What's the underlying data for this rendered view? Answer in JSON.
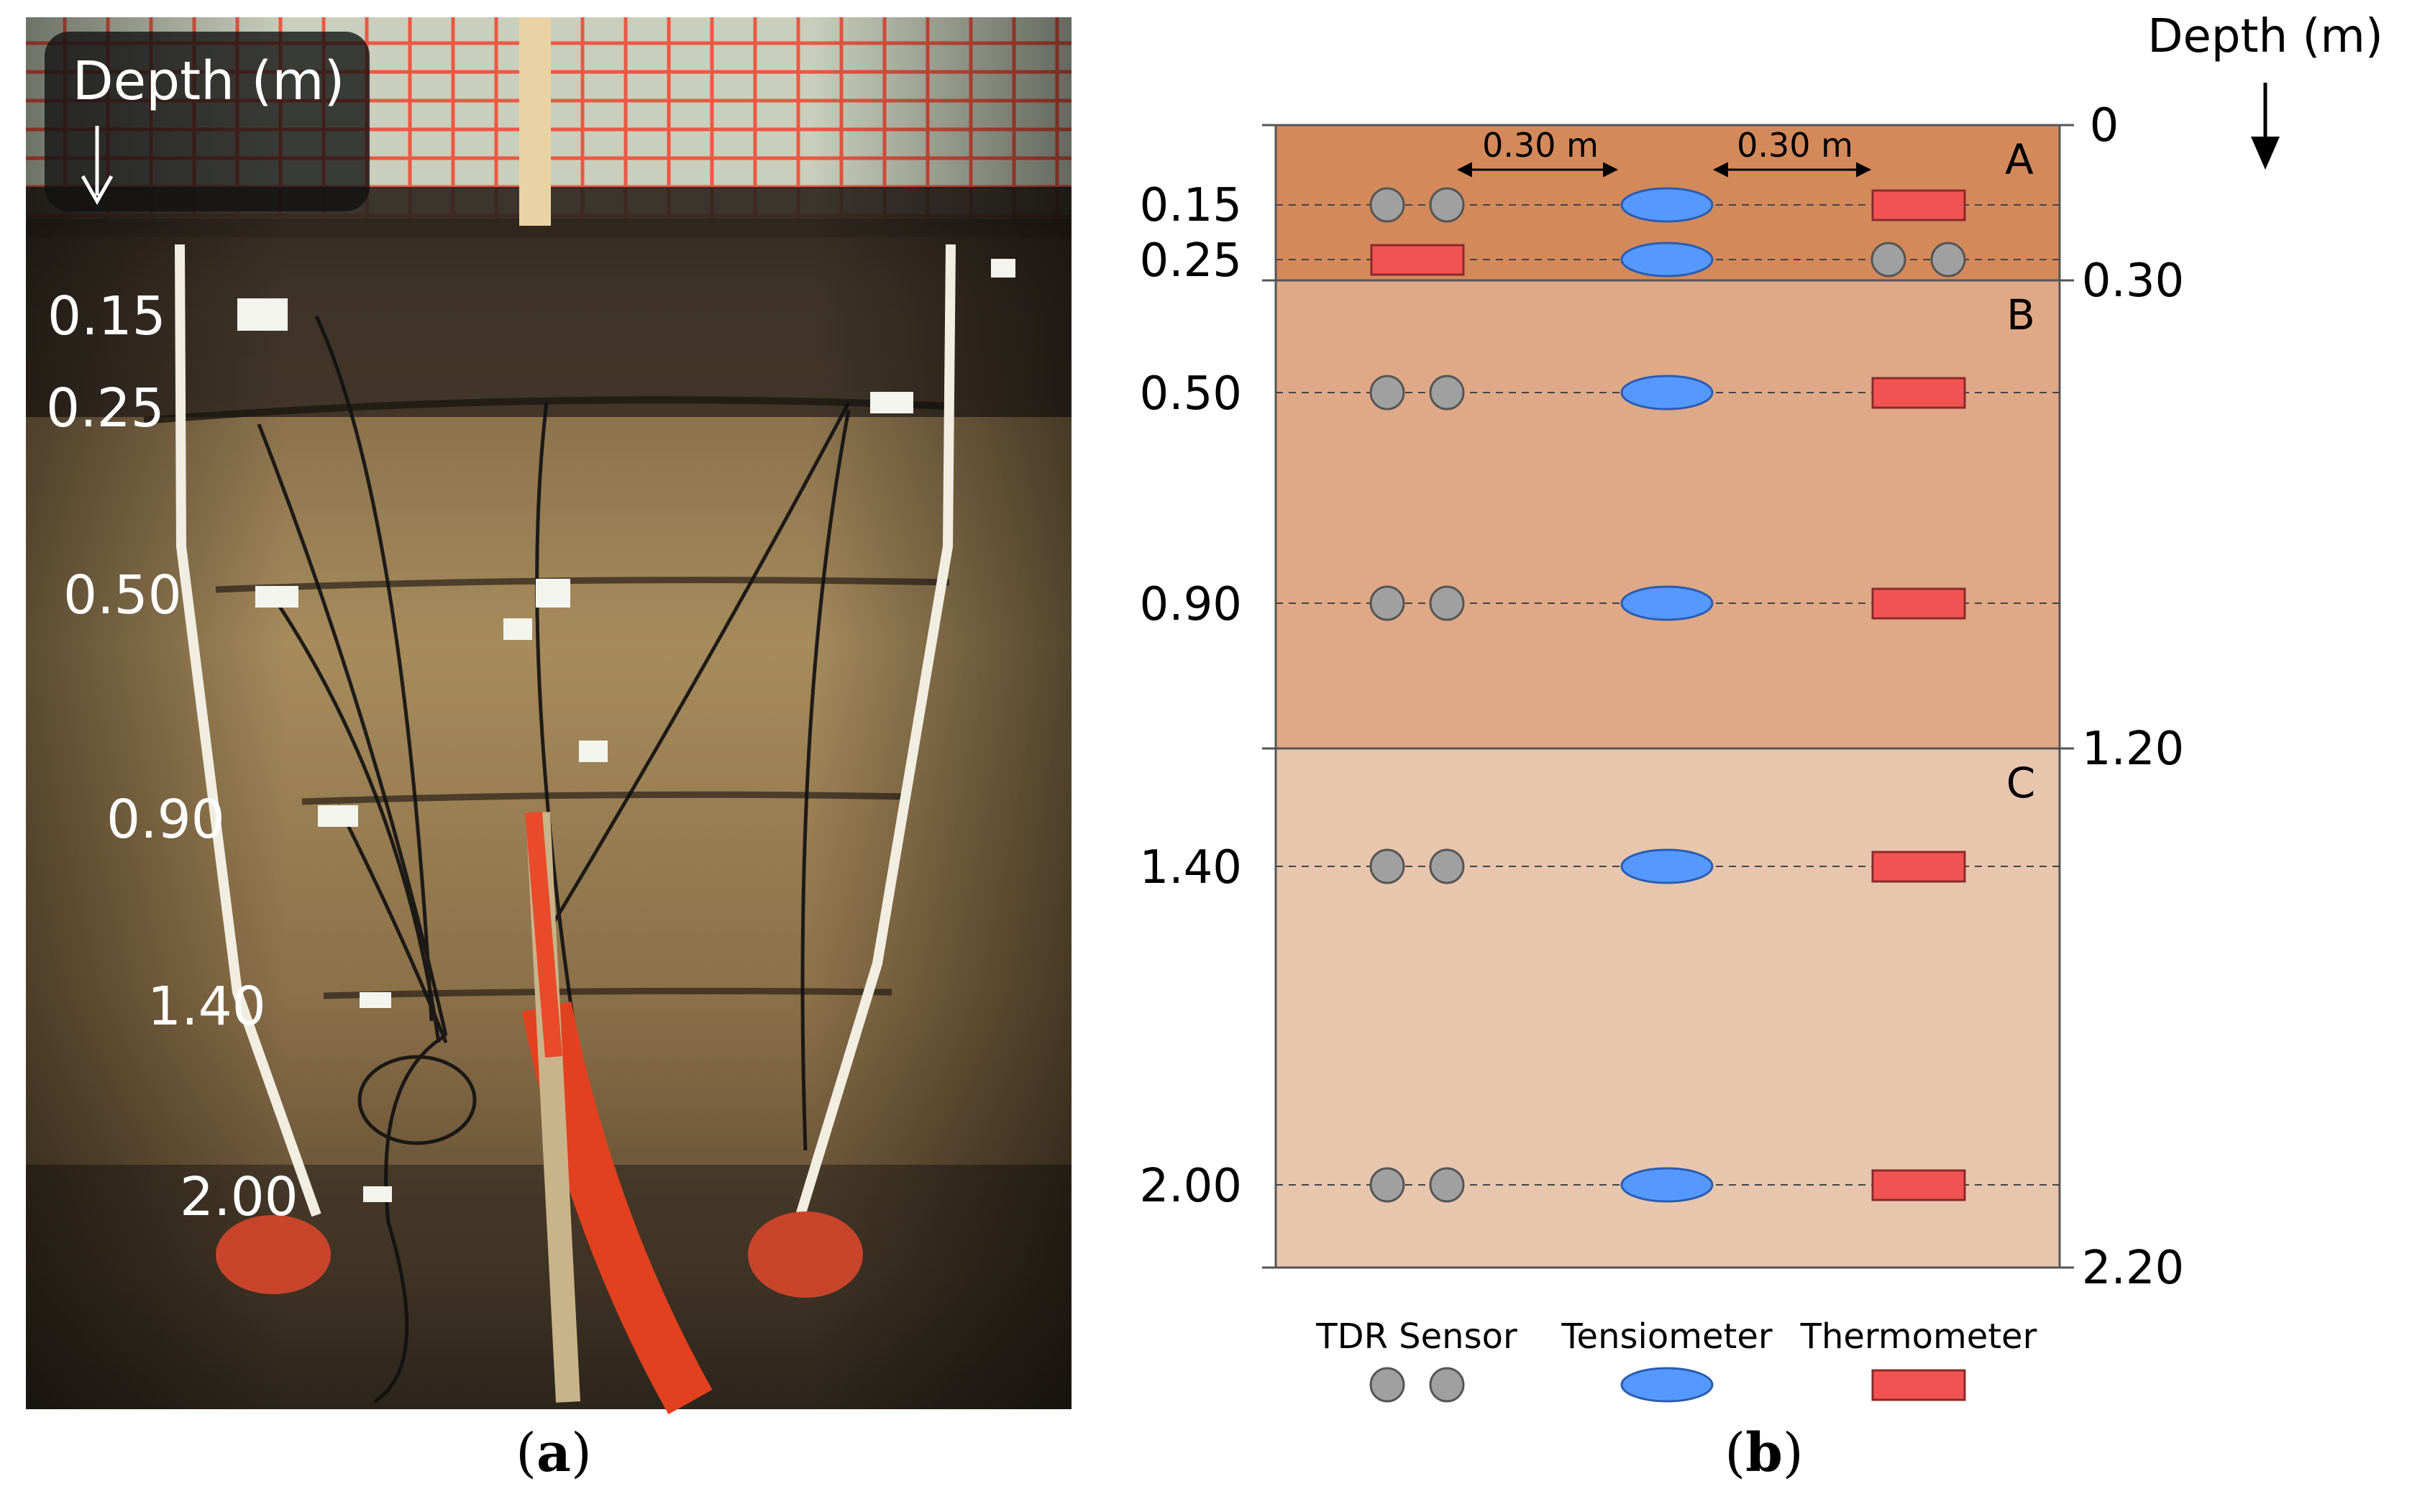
{
  "photo": {
    "depth_label": "Depth (m)",
    "depth_marks": [
      "0.15",
      "0.25",
      "0.50",
      "0.90",
      "1.40",
      "2.00"
    ],
    "caption_open": "(",
    "caption_letter": "a",
    "caption_close": ")"
  },
  "diagram": {
    "depth_label": "Depth (m)",
    "sensor_depths": [
      "0.15",
      "0.25",
      "0.50",
      "0.90",
      "1.40",
      "2.00"
    ],
    "boundary_depths": [
      "0",
      "0.30",
      "1.20",
      "2.20"
    ],
    "horizons": [
      {
        "name": "A",
        "color": "#d4895b"
      },
      {
        "name": "B",
        "color": "#dfa886"
      },
      {
        "name": "C",
        "color": "#e8c6ae"
      }
    ],
    "spacing_labels": [
      "0.30 m",
      "0.30 m"
    ],
    "legend": {
      "tdr": "TDR Sensor",
      "tensiometer": "Tensiometer",
      "thermometer": "Thermometer"
    },
    "colors": {
      "tdr": "#a0a0a0",
      "tensiometer": "#5599ff",
      "thermometer": "#f15353"
    },
    "caption_open": "(",
    "caption_letter": "b",
    "caption_close": ")"
  }
}
